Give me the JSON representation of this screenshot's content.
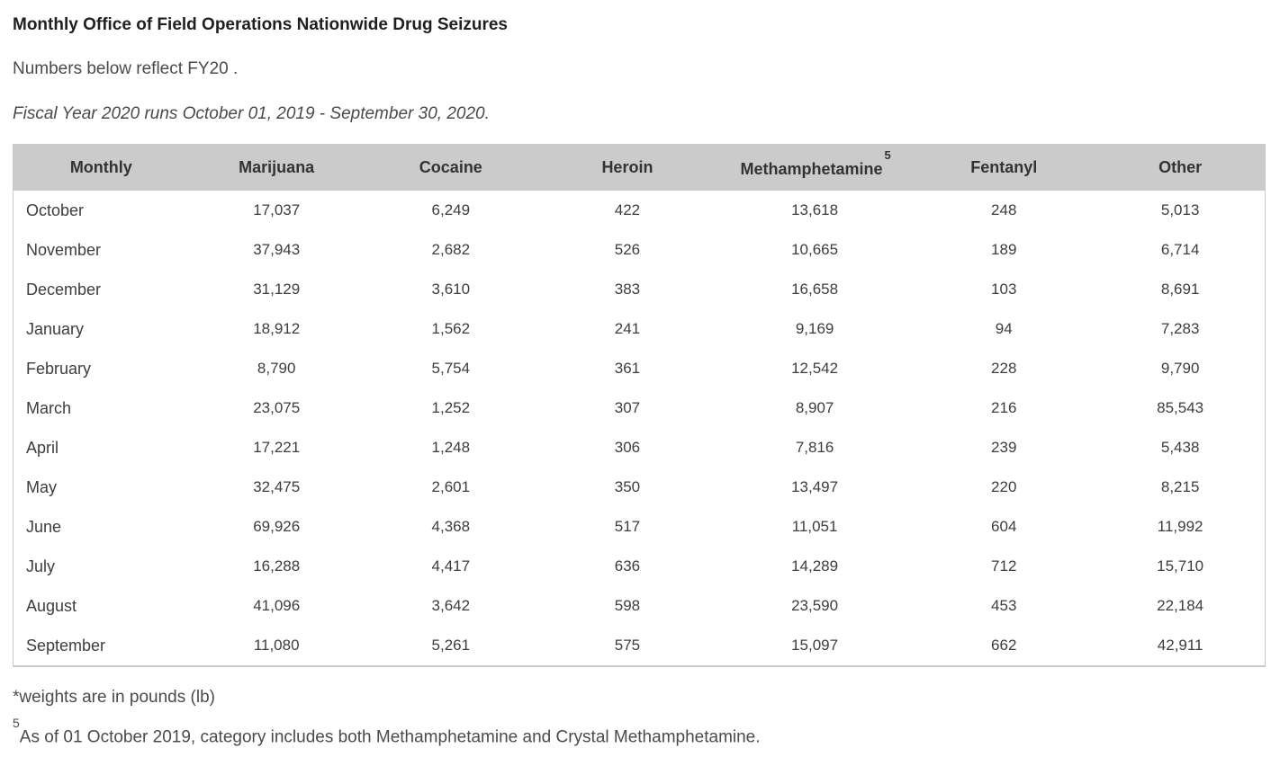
{
  "page": {
    "title": "Monthly Office of Field Operations Nationwide Drug Seizures",
    "subtitle": "Numbers below reflect FY20 .",
    "fiscal_note": "Fiscal Year 2020 runs October 01, 2019 - September 30, 2020.",
    "weights_note": "*weights are in pounds (lb)",
    "footnote": {
      "marker": "5",
      "text": "As of 01 October 2019, category includes both Methamphetamine and Crystal Methamphetamine."
    }
  },
  "colors": {
    "header_background": "#cbcbcb",
    "table_border": "#cbcbcb",
    "title_text": "#1f1f1f",
    "body_text": "#4a4a4a"
  },
  "table": {
    "columns": [
      {
        "label": "Monthly"
      },
      {
        "label": "Marijuana"
      },
      {
        "label": "Cocaine"
      },
      {
        "label": "Heroin"
      },
      {
        "label": "Methamphetamine",
        "superscript": "5"
      },
      {
        "label": "Fentanyl"
      },
      {
        "label": "Other"
      }
    ],
    "rows": [
      {
        "month": "October",
        "values": [
          "17,037",
          "6,249",
          "422",
          "13,618",
          "248",
          "5,013"
        ]
      },
      {
        "month": "November",
        "values": [
          "37,943",
          "2,682",
          "526",
          "10,665",
          "189",
          "6,714"
        ]
      },
      {
        "month": "December",
        "values": [
          "31,129",
          "3,610",
          "383",
          "16,658",
          "103",
          "8,691"
        ]
      },
      {
        "month": "January",
        "values": [
          "18,912",
          "1,562",
          "241",
          "9,169",
          "94",
          "7,283"
        ]
      },
      {
        "month": "February",
        "values": [
          "8,790",
          "5,754",
          "361",
          "12,542",
          "228",
          "9,790"
        ]
      },
      {
        "month": "March",
        "values": [
          "23,075",
          "1,252",
          "307",
          "8,907",
          "216",
          "85,543"
        ]
      },
      {
        "month": "April",
        "values": [
          "17,221",
          "1,248",
          "306",
          "7,816",
          "239",
          "5,438"
        ]
      },
      {
        "month": "May",
        "values": [
          "32,475",
          "2,601",
          "350",
          "13,497",
          "220",
          "8,215"
        ]
      },
      {
        "month": "June",
        "values": [
          "69,926",
          "4,368",
          "517",
          "11,051",
          "604",
          "11,992"
        ]
      },
      {
        "month": "July",
        "values": [
          "16,288",
          "4,417",
          "636",
          "14,289",
          "712",
          "15,710"
        ]
      },
      {
        "month": "August",
        "values": [
          "41,096",
          "3,642",
          "598",
          "23,590",
          "453",
          "22,184"
        ]
      },
      {
        "month": "September",
        "values": [
          "11,080",
          "5,261",
          "575",
          "15,097",
          "662",
          "42,911"
        ]
      }
    ]
  }
}
